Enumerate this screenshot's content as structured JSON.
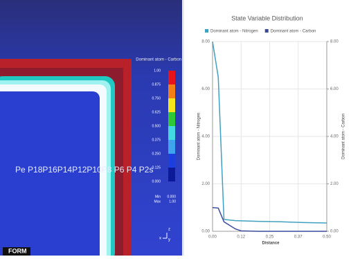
{
  "viewport": {
    "legend_title": "Dominant atom - Carbon",
    "colorbar": {
      "ticks": [
        {
          "value": 1,
          "label": "1.00"
        },
        0.875,
        {
          "value": 0.75,
          "label": "0.750"
        },
        0.625,
        {
          "value": 0.5,
          "label": "0.500"
        },
        0.375,
        {
          "value": 0.25,
          "label": "0.250"
        },
        0.125,
        {
          "value": 0,
          "label": "0.000"
        }
      ],
      "colors": [
        "#e8141c",
        "#f57f17",
        "#f3e61a",
        "#2fc837",
        "#43d8e0",
        "#3fa4ee",
        "#1c3fe0",
        "#0c1a9a"
      ]
    },
    "min_label": "Min",
    "min_value": "0.000",
    "max_label": "Max",
    "max_value": "1.00",
    "point_labels": "Pe P18P16P14P12P10P8 P6 P4 P2s",
    "logo": "FORM",
    "axis_z": "z",
    "axis_x": "x",
    "axis_y": "y"
  },
  "chart_data": {
    "type": "line",
    "title": "State Variable Distribution",
    "x_label": "Distance",
    "y_label": "Dominant atom - Nitrogen",
    "y2_label": "Dominant atom - Carbon",
    "x": [
      0,
      0.025,
      0.05,
      0.1,
      0.125,
      0.2,
      0.3,
      0.4,
      0.5
    ],
    "series": [
      {
        "name": "Dominant atom - Nitrogen",
        "color": "#3fa0c0",
        "values": [
          8,
          6.5,
          0.5,
          0.45,
          0.44,
          0.42,
          0.4,
          0.37,
          0.35
        ]
      },
      {
        "name": "Dominant atom - Carbon",
        "color": "#3a4a9c",
        "axis": "y2",
        "values": [
          1,
          0.98,
          0.4,
          0.1,
          0.02,
          0,
          0,
          0,
          0
        ]
      }
    ],
    "xlim": [
      0,
      0.5
    ],
    "ylim": [
      0,
      8
    ],
    "y2lim": [
      0,
      8
    ],
    "xticks": [
      {
        "value": 0,
        "label": "0.00"
      },
      {
        "value": 0.125,
        "label": "0.12"
      },
      {
        "value": 0.25,
        "label": "0.25"
      },
      {
        "value": 0.375,
        "label": "0.37"
      },
      {
        "value": 0.5,
        "label": "0.50"
      }
    ],
    "yticks": [
      {
        "value": 0,
        "label": "0.00"
      },
      {
        "value": 2,
        "label": "2.00"
      },
      {
        "value": 4,
        "label": "4.00"
      },
      {
        "value": 6,
        "label": "6.00"
      },
      {
        "value": 8,
        "label": "8.00"
      }
    ],
    "y2ticks": [
      {
        "value": 0,
        "label": "0.00"
      },
      {
        "value": 2,
        "label": "2.00"
      },
      {
        "value": 4,
        "label": "4.00"
      },
      {
        "value": 6,
        "label": "6.00"
      },
      {
        "value": 8,
        "label": "8.00"
      }
    ],
    "grid": true,
    "legend": "top"
  }
}
